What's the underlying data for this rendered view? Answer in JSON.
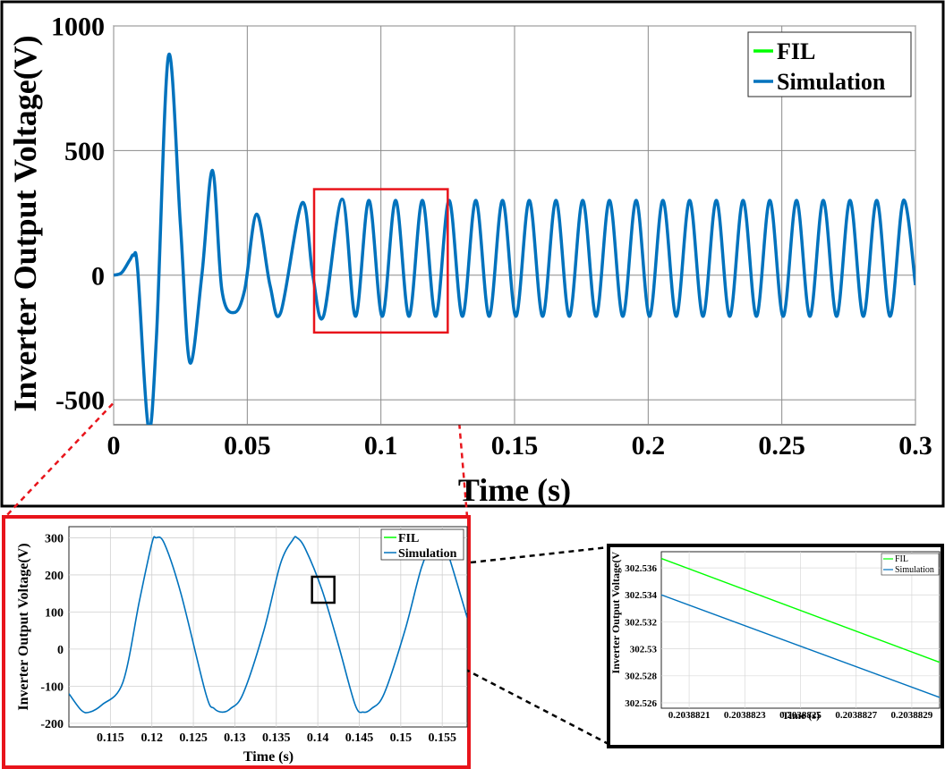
{
  "chart_data": [
    {
      "id": "main",
      "type": "line",
      "xlabel": "Time (s)",
      "ylabel": "Inverter Output Voltage(V)",
      "xlim": [
        0,
        0.3
      ],
      "ylim": [
        -600,
        1000
      ],
      "xticks": [
        0,
        0.05,
        0.1,
        0.15,
        0.2,
        0.25,
        0.3
      ],
      "xtick_labels": [
        "0",
        "0.05",
        "0.1",
        "0.15",
        "0.2",
        "0.25",
        "0.3"
      ],
      "yticks": [
        -500,
        0,
        500,
        1000
      ],
      "ytick_labels": [
        "-500",
        "0",
        "500",
        "1000"
      ],
      "grid": true,
      "legend_position": "top-right",
      "zoom_box": {
        "x": [
          0.075,
          0.125
        ],
        "y": [
          -230,
          345
        ]
      },
      "series": [
        {
          "name": "FIL",
          "color": "#00ff00",
          "visible_line": false,
          "x": [],
          "y": []
        },
        {
          "name": "Simulation",
          "color": "#0072bd",
          "x": [
            0,
            0.003,
            0.006,
            0.0075,
            0.009,
            0.013,
            0.016,
            0.0205,
            0.025,
            0.0285,
            0.033,
            0.037,
            0.0405,
            0.045,
            0.049,
            0.0535,
            0.0585,
            0.0625,
            0.0705,
            0.0745,
            0.0785,
            0.0855,
            0.0905,
            0.0955,
            0.1005,
            0.1055,
            0.1105,
            0.1155,
            0.1205,
            0.1255,
            0.1305,
            0.1355,
            0.1405,
            0.1455,
            0.1505,
            0.1555,
            0.1605,
            0.1655,
            0.1705,
            0.1755,
            0.1805,
            0.1855,
            0.1905,
            0.1955,
            0.2005,
            0.2055,
            0.2105,
            0.2155,
            0.2205,
            0.2255,
            0.2305,
            0.2355,
            0.2405,
            0.2455,
            0.2505,
            0.2555,
            0.2605,
            0.2655,
            0.2705,
            0.2755,
            0.2805,
            0.2855,
            0.2905,
            0.2955,
            0.3
          ],
          "y": [
            0,
            10,
            60,
            80,
            20,
            -610,
            -250,
            880,
            200,
            -350,
            0,
            420,
            -60,
            -150,
            -60,
            245,
            -40,
            -150,
            290,
            0,
            -165,
            305,
            -165,
            300,
            -165,
            300,
            -165,
            300,
            -165,
            300,
            -165,
            300,
            -165,
            300,
            -165,
            300,
            -165,
            300,
            -165,
            300,
            -165,
            300,
            -165,
            300,
            -165,
            300,
            -165,
            300,
            -165,
            300,
            -165,
            300,
            -165,
            300,
            -165,
            300,
            -165,
            300,
            -165,
            300,
            -165,
            300,
            -165,
            300,
            -40
          ]
        }
      ]
    },
    {
      "id": "zoom1",
      "type": "line",
      "xlabel": "Time (s)",
      "ylabel": "Inverter Output Voltage(V)",
      "xlim": [
        0.11,
        0.158
      ],
      "ylim": [
        -210,
        330
      ],
      "xticks": [
        0.115,
        0.12,
        0.125,
        0.13,
        0.135,
        0.14,
        0.145,
        0.15,
        0.155
      ],
      "xtick_labels": [
        "0.115",
        "0.12",
        "0.125",
        "0.13",
        "0.135",
        "0.14",
        "0.145",
        "0.15",
        "0.155"
      ],
      "yticks": [
        -200,
        -100,
        0,
        100,
        200,
        300
      ],
      "ytick_labels": [
        "-200",
        "-100",
        "0",
        "100",
        "200",
        "300"
      ],
      "grid": true,
      "legend_position": "top-right",
      "zoom_box": {
        "x": [
          0.1393,
          0.142
        ],
        "y": [
          125,
          195
        ]
      },
      "series": [
        {
          "name": "FIL",
          "color": "#00ff00",
          "visible_line": false,
          "x": [],
          "y": []
        },
        {
          "name": "Simulation",
          "color": "#0072bd",
          "x": [
            0.11,
            0.1115,
            0.1125,
            0.114,
            0.1165,
            0.1185,
            0.12,
            0.1205,
            0.1215,
            0.1235,
            0.1265,
            0.1275,
            0.1285,
            0.1295,
            0.131,
            0.1335,
            0.1355,
            0.137,
            0.1375,
            0.1385,
            0.1405,
            0.1425,
            0.1445,
            0.1455,
            0.1465,
            0.148,
            0.1505,
            0.1525,
            0.154,
            0.1545,
            0.1555,
            0.158
          ],
          "y": [
            -120,
            -165,
            -170,
            -150,
            -90,
            130,
            285,
            300,
            285,
            150,
            -120,
            -160,
            -170,
            -160,
            -120,
            50,
            230,
            295,
            300,
            270,
            160,
            10,
            -150,
            -170,
            -160,
            -120,
            50,
            220,
            295,
            300,
            270,
            85
          ]
        }
      ]
    },
    {
      "id": "zoom2",
      "type": "line",
      "xlabel": "Time (s)",
      "xlim": [
        0.203882,
        0.203883
      ],
      "ylim": [
        302.5256,
        302.5372
      ],
      "xticks": [
        0.2038821,
        0.2038823,
        0.2038825,
        0.2038827,
        0.2038829
      ],
      "xtick_labels": [
        "0.2038821",
        "0.2038823",
        "0.2038825",
        "0.2038827",
        "0.2038829"
      ],
      "yticks": [
        302.526,
        302.528,
        302.53,
        302.532,
        302.534,
        302.536
      ],
      "ytick_labels": [
        "302.526",
        "302.528",
        "302.53",
        "302.532",
        "302.534",
        "302.536"
      ],
      "grid": true,
      "legend_position": "top-right",
      "series": [
        {
          "name": "FIL",
          "color": "#00ff00",
          "x": [
            0.203882,
            0.203883
          ],
          "y": [
            302.5367,
            302.529
          ]
        },
        {
          "name": "Simulation",
          "color": "#0072bd",
          "x": [
            0.203882,
            0.203883
          ],
          "y": [
            302.534,
            302.5264
          ]
        }
      ]
    }
  ],
  "zoom2_ylabel_visible": "Inverter Output Voltage(V"
}
